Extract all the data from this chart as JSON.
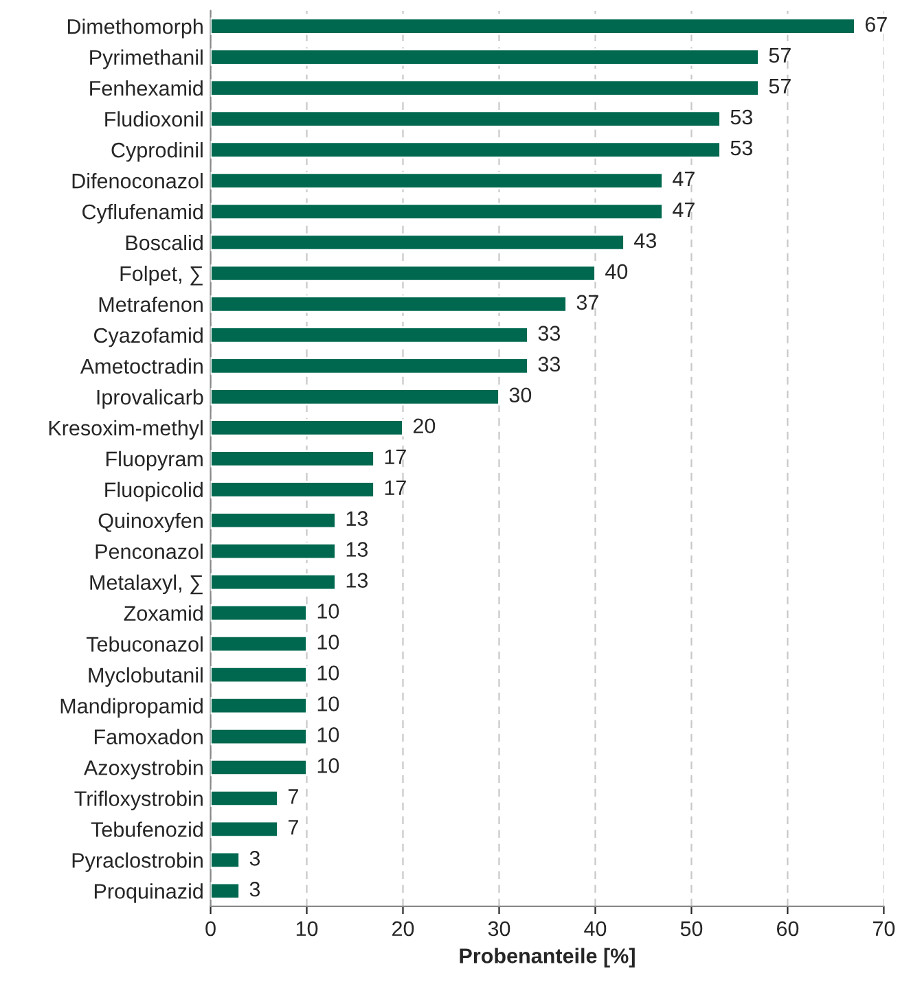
{
  "chart_data": {
    "type": "bar",
    "orientation": "horizontal",
    "xlabel": "Probenanteile [%]",
    "categories": [
      "Dimethomorph",
      "Pyrimethanil",
      "Fenhexamid",
      "Fludioxonil",
      "Cyprodinil",
      "Difenoconazol",
      "Cyflufenamid",
      "Boscalid",
      "Folpet, ∑",
      "Metrafenon",
      "Cyazofamid",
      "Ametoctradin",
      "Iprovalicarb",
      "Kresoxim-methyl",
      "Fluopyram",
      "Fluopicolid",
      "Quinoxyfen",
      "Penconazol",
      "Metalaxyl, ∑",
      "Zoxamid",
      "Tebuconazol",
      "Myclobutanil",
      "Mandipropamid",
      "Famoxadon",
      "Azoxystrobin",
      "Trifloxystrobin",
      "Tebufenozid",
      "Pyraclostrobin",
      "Proquinazid"
    ],
    "values": [
      67,
      57,
      57,
      53,
      53,
      47,
      47,
      43,
      40,
      37,
      33,
      33,
      30,
      20,
      17,
      17,
      13,
      13,
      13,
      10,
      10,
      10,
      10,
      10,
      10,
      7,
      7,
      3,
      3
    ],
    "color": "#00684f",
    "data_labels": true,
    "grid": "x",
    "xlim": [
      0,
      70
    ],
    "xticks": [
      0,
      10,
      20,
      30,
      40,
      50,
      60,
      70
    ]
  }
}
